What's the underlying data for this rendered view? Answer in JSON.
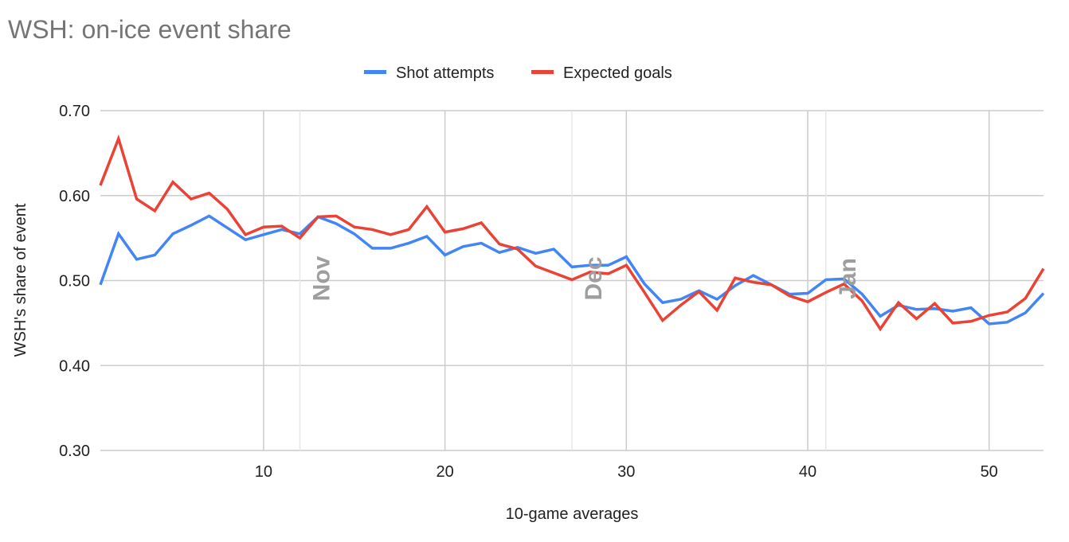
{
  "chart_data": {
    "type": "line",
    "title": "WSH: on-ice event share",
    "xlabel": "10-game averages",
    "ylabel": "WSH's share of event",
    "xlim": [
      1,
      53
    ],
    "ylim": [
      0.3,
      0.7
    ],
    "xticks": [
      10,
      20,
      30,
      40,
      50
    ],
    "yticks": [
      "0.30",
      "0.40",
      "0.50",
      "0.60",
      "0.70"
    ],
    "grid": true,
    "legend_position": "top",
    "month_markers": [
      {
        "label": "Nov",
        "x": 12
      },
      {
        "label": "Dec",
        "x": 27
      },
      {
        "label": "Jan",
        "x": 41
      }
    ],
    "x": [
      1,
      2,
      3,
      4,
      5,
      6,
      7,
      8,
      9,
      10,
      11,
      12,
      13,
      14,
      15,
      16,
      17,
      18,
      19,
      20,
      21,
      22,
      23,
      24,
      25,
      26,
      27,
      28,
      29,
      30,
      31,
      32,
      33,
      34,
      35,
      36,
      37,
      38,
      39,
      40,
      41,
      42,
      43,
      44,
      45,
      46,
      47,
      48,
      49,
      50,
      51,
      52,
      53
    ],
    "series": [
      {
        "name": "Shot attempts",
        "color": "#4285F4",
        "values": [
          0.495,
          0.555,
          0.525,
          0.53,
          0.555,
          0.565,
          0.576,
          0.562,
          0.548,
          0.554,
          0.56,
          0.555,
          0.575,
          0.567,
          0.555,
          0.538,
          0.538,
          0.544,
          0.552,
          0.53,
          0.54,
          0.544,
          0.533,
          0.539,
          0.532,
          0.537,
          0.516,
          0.518,
          0.518,
          0.528,
          0.496,
          0.474,
          0.478,
          0.488,
          0.478,
          0.494,
          0.506,
          0.495,
          0.484,
          0.485,
          0.501,
          0.502,
          0.484,
          0.458,
          0.471,
          0.466,
          0.467,
          0.464,
          0.468,
          0.449,
          0.451,
          0.462,
          0.485
        ]
      },
      {
        "name": "Expected goals",
        "color": "#EA4335",
        "values": [
          0.612,
          0.667,
          0.596,
          0.582,
          0.616,
          0.596,
          0.603,
          0.584,
          0.554,
          0.563,
          0.564,
          0.55,
          0.575,
          0.576,
          0.563,
          0.56,
          0.554,
          0.56,
          0.587,
          0.557,
          0.561,
          0.568,
          0.543,
          0.537,
          0.517,
          0.509,
          0.501,
          0.51,
          0.508,
          0.518,
          0.486,
          0.453,
          0.471,
          0.487,
          0.465,
          0.503,
          0.498,
          0.495,
          0.482,
          0.475,
          0.486,
          0.496,
          0.476,
          0.443,
          0.474,
          0.455,
          0.473,
          0.45,
          0.452,
          0.459,
          0.463,
          0.479,
          0.514
        ]
      }
    ]
  }
}
